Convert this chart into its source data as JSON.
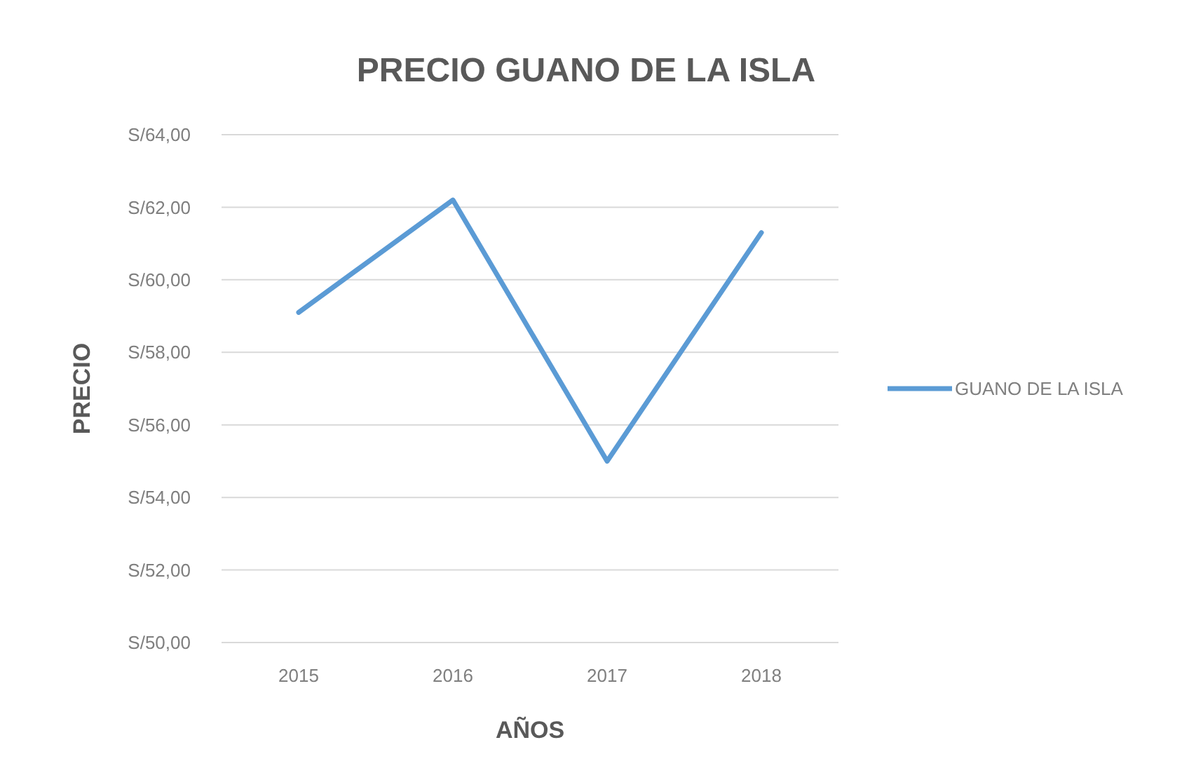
{
  "chart_data": {
    "type": "line",
    "title": "PRECIO GUANO DE LA ISLA",
    "xlabel": "AÑOS",
    "ylabel": "PRECIO",
    "categories": [
      "2015",
      "2016",
      "2017",
      "2018"
    ],
    "series": [
      {
        "name": "GUANO DE LA ISLA",
        "color": "#5b9bd5",
        "values": [
          59.1,
          62.2,
          55.0,
          61.3
        ]
      }
    ],
    "ylim": [
      50,
      64
    ],
    "yticks": [
      {
        "value": 50,
        "label": "S/50,00"
      },
      {
        "value": 52,
        "label": "S/52,00"
      },
      {
        "value": 54,
        "label": "S/54,00"
      },
      {
        "value": 56,
        "label": "S/56,00"
      },
      {
        "value": 58,
        "label": "S/58,00"
      },
      {
        "value": 60,
        "label": "S/60,00"
      },
      {
        "value": 62,
        "label": "S/62,00"
      },
      {
        "value": 64,
        "label": "S/64,00"
      }
    ],
    "grid": "y",
    "legend": "right",
    "marker": "none",
    "line_style": "solid"
  }
}
